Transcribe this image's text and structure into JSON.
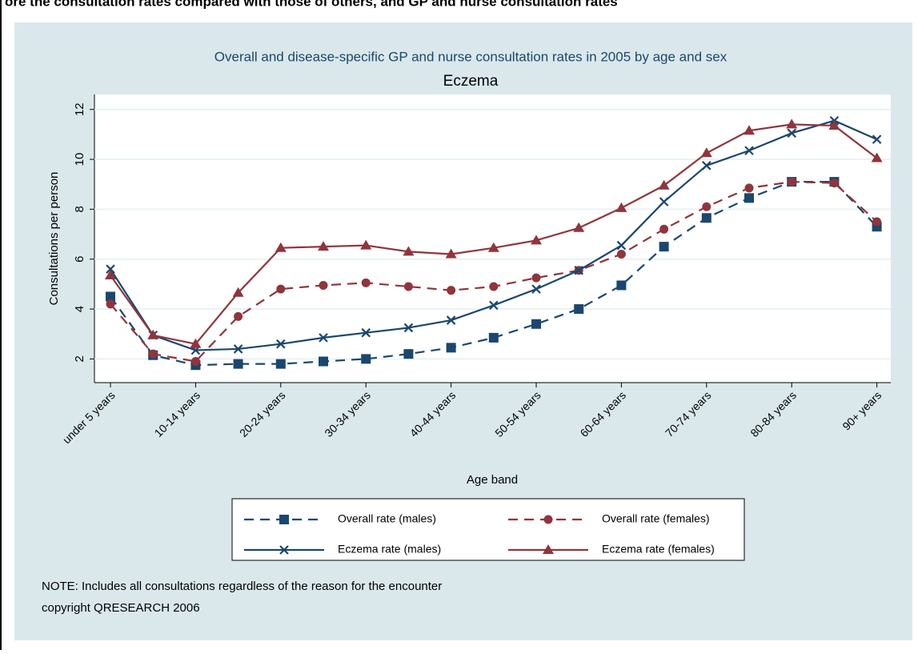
{
  "header": "ore the consultation rates compared with those of others, and GP and nurse consultation rates",
  "chart_data": {
    "type": "line",
    "title": "Overall and disease-specific GP and nurse consultation rates in 2005 by age and sex",
    "subtitle": "Eczema",
    "x_label": "Age band",
    "y_label": "Consultations per person",
    "categories": [
      "under 5 years",
      null,
      "10-14 years",
      null,
      "20-24 years",
      null,
      "30-34 years",
      null,
      "40-44 years",
      null,
      "50-54 years",
      null,
      "60-64 years",
      null,
      "70-74 years",
      null,
      "80-84 years",
      null,
      "90+ years"
    ],
    "ylim": [
      1.05,
      12.6
    ],
    "yticks": [
      2,
      4,
      6,
      8,
      10,
      12
    ],
    "grid": true,
    "series": [
      {
        "name": "Overall rate (males)",
        "color": "#1a476f",
        "dash": true,
        "marker": "square",
        "values": [
          4.5,
          2.15,
          1.75,
          1.8,
          1.8,
          1.9,
          2.0,
          2.2,
          2.45,
          2.85,
          3.4,
          4.0,
          4.95,
          6.5,
          7.65,
          8.45,
          9.1,
          9.1,
          7.3
        ]
      },
      {
        "name": "Overall rate (females)",
        "color": "#90353b",
        "dash": true,
        "marker": "circle",
        "values": [
          4.2,
          2.2,
          1.9,
          3.7,
          4.8,
          4.95,
          5.05,
          4.9,
          4.75,
          4.9,
          5.25,
          5.55,
          6.2,
          7.2,
          8.1,
          8.85,
          9.1,
          9.05,
          7.5
        ]
      },
      {
        "name": "Eczema rate (males)",
        "color": "#1a476f",
        "dash": false,
        "marker": "x",
        "values": [
          5.6,
          2.95,
          2.35,
          2.4,
          2.6,
          2.85,
          3.05,
          3.25,
          3.55,
          4.15,
          4.8,
          5.55,
          6.55,
          8.3,
          9.75,
          10.35,
          11.05,
          11.55,
          10.8
        ]
      },
      {
        "name": "Eczema rate (females)",
        "color": "#90353b",
        "dash": false,
        "marker": "triangle",
        "values": [
          5.35,
          2.95,
          2.6,
          4.65,
          6.45,
          6.5,
          6.55,
          6.3,
          6.2,
          6.45,
          6.75,
          7.25,
          8.05,
          8.95,
          10.25,
          11.15,
          11.4,
          11.35,
          10.05
        ]
      }
    ],
    "notes": [
      "NOTE: Includes all consultations regardless of the reason for the encounter",
      "copyright QRESEARCH 2006"
    ]
  }
}
